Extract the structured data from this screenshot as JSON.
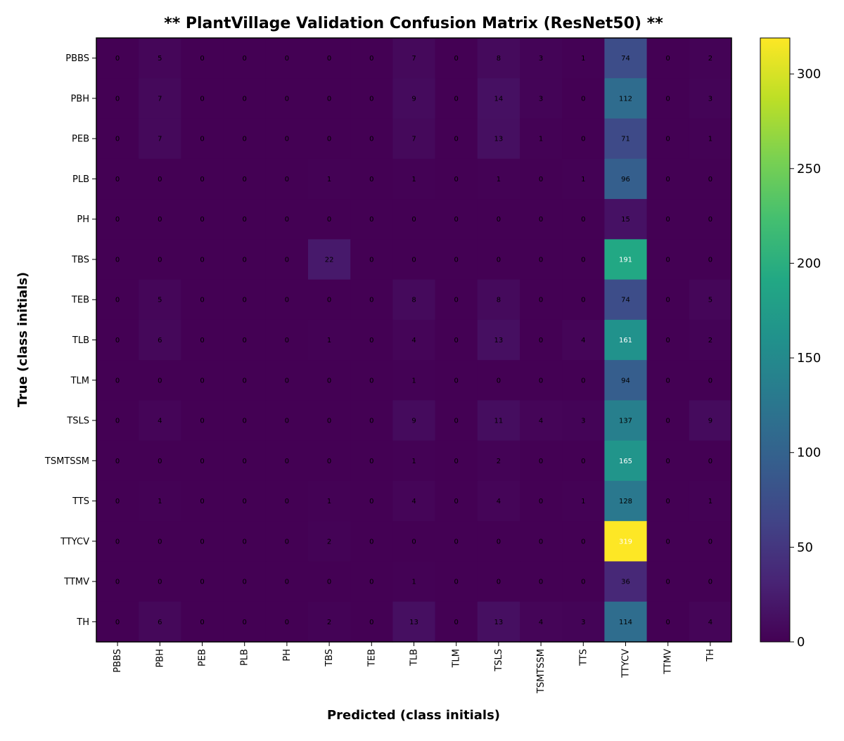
{
  "chart_data": {
    "type": "heatmap",
    "title": "** PlantVillage Validation Confusion Matrix (ResNet50) **",
    "xlabel": "Predicted (class initials)",
    "ylabel": "True (class initials)",
    "x_categories": [
      "PBBS",
      "PBH",
      "PEB",
      "PLB",
      "PH",
      "TBS",
      "TEB",
      "TLB",
      "TLM",
      "TSLS",
      "TSMTSSM",
      "TTS",
      "TTYCV",
      "TTMV",
      "TH"
    ],
    "y_categories": [
      "PBBS",
      "PBH",
      "PEB",
      "PLB",
      "PH",
      "TBS",
      "TEB",
      "TLB",
      "TLM",
      "TSLS",
      "TSMTSSM",
      "TTS",
      "TTYCV",
      "TTMV",
      "TH"
    ],
    "matrix": [
      [
        0,
        5,
        0,
        0,
        0,
        0,
        0,
        7,
        0,
        8,
        3,
        1,
        74,
        0,
        2
      ],
      [
        0,
        7,
        0,
        0,
        0,
        0,
        0,
        9,
        0,
        14,
        3,
        0,
        112,
        0,
        3
      ],
      [
        0,
        7,
        0,
        0,
        0,
        0,
        0,
        7,
        0,
        13,
        1,
        0,
        71,
        0,
        1
      ],
      [
        0,
        0,
        0,
        0,
        0,
        1,
        0,
        1,
        0,
        1,
        0,
        1,
        96,
        0,
        0
      ],
      [
        0,
        0,
        0,
        0,
        0,
        0,
        0,
        0,
        0,
        0,
        0,
        0,
        15,
        0,
        0
      ],
      [
        0,
        0,
        0,
        0,
        0,
        22,
        0,
        0,
        0,
        0,
        0,
        0,
        191,
        0,
        0
      ],
      [
        0,
        5,
        0,
        0,
        0,
        0,
        0,
        8,
        0,
        8,
        0,
        0,
        74,
        0,
        5
      ],
      [
        0,
        6,
        0,
        0,
        0,
        1,
        0,
        4,
        0,
        13,
        0,
        4,
        161,
        0,
        2
      ],
      [
        0,
        0,
        0,
        0,
        0,
        0,
        0,
        1,
        0,
        0,
        0,
        0,
        94,
        0,
        0
      ],
      [
        0,
        4,
        0,
        0,
        0,
        0,
        0,
        9,
        0,
        11,
        4,
        3,
        137,
        0,
        9
      ],
      [
        0,
        0,
        0,
        0,
        0,
        0,
        0,
        1,
        0,
        2,
        0,
        0,
        165,
        0,
        0
      ],
      [
        0,
        1,
        0,
        0,
        0,
        1,
        0,
        4,
        0,
        4,
        0,
        1,
        128,
        0,
        1
      ],
      [
        0,
        0,
        0,
        0,
        0,
        2,
        0,
        0,
        0,
        0,
        0,
        0,
        319,
        0,
        0
      ],
      [
        0,
        0,
        0,
        0,
        0,
        0,
        0,
        1,
        0,
        0,
        0,
        0,
        36,
        0,
        0
      ],
      [
        0,
        6,
        0,
        0,
        0,
        2,
        0,
        13,
        0,
        13,
        4,
        3,
        114,
        0,
        4
      ]
    ],
    "colormap": "viridis",
    "vmin": 0,
    "vmax": 319,
    "colorbar_ticks": [
      0,
      50,
      100,
      150,
      200,
      250,
      300
    ],
    "grid": false,
    "colorbar_placement": "right"
  }
}
